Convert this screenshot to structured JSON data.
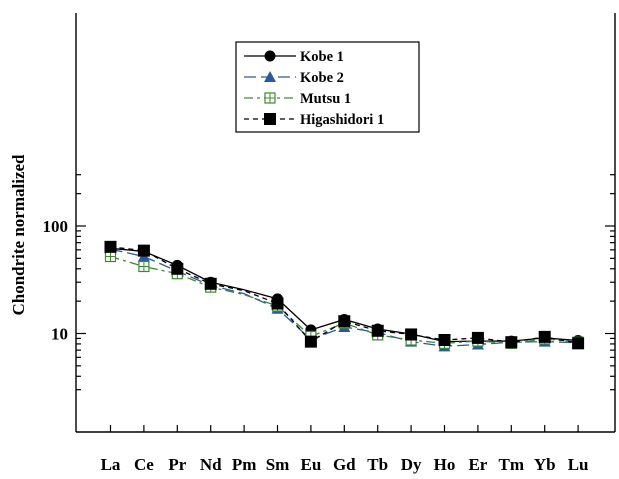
{
  "chart_data": {
    "type": "line",
    "ylabel": "Chondrite normalized",
    "yscale": "log",
    "ylim": [
      3,
      300
    ],
    "y_tick_labels": [
      "10",
      "100"
    ],
    "categories": [
      "La",
      "Ce",
      "Pr",
      "Nd",
      "Pm",
      "Sm",
      "Eu",
      "Gd",
      "Tb",
      "Dy",
      "Ho",
      "Er",
      "Tm",
      "Yb",
      "Lu"
    ],
    "series": [
      {
        "name": "Kobe 1",
        "color": "#000000",
        "dash": "solid",
        "marker": "circle",
        "values": [
          62,
          58,
          43,
          30,
          25.5,
          21,
          10.8,
          13.5,
          11,
          9.9,
          8.4,
          8.5,
          8.5,
          9.1,
          8.6
        ]
      },
      {
        "name": "Kobe 2",
        "color": "#2a5a9e",
        "dash": "long",
        "marker": "triangle",
        "values": [
          61,
          52,
          38,
          28,
          23.5,
          17,
          8.8,
          11.5,
          10.2,
          8.4,
          7.6,
          7.9,
          8.3,
          8.4,
          8.2
        ]
      },
      {
        "name": "Mutsu 1",
        "color": "#3c8a2e",
        "dash": "dashdot",
        "marker": "square-plus",
        "values": [
          52,
          42,
          36,
          27,
          23,
          18,
          9.4,
          12.5,
          9.7,
          8.7,
          8.1,
          8.5,
          8.1,
          8.9,
          8.3
        ]
      },
      {
        "name": "Higashidori 1",
        "color": "#000000",
        "dash": "short",
        "marker": "square",
        "values": [
          64,
          59,
          40,
          29,
          25,
          19,
          8.4,
          13,
          10.6,
          9.8,
          8.7,
          9.1,
          8.3,
          9.3,
          8.1
        ]
      }
    ],
    "legend_position": "top-center",
    "grid": false
  }
}
